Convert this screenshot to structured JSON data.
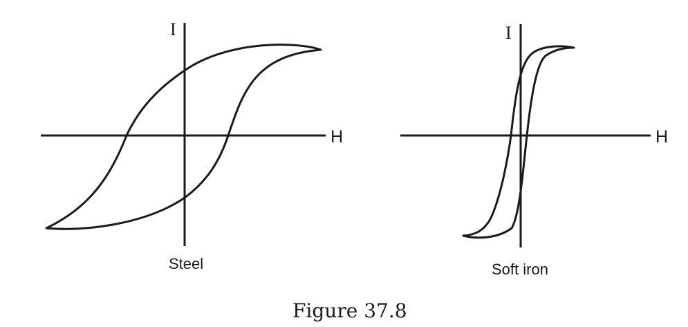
{
  "panels": [
    {
      "id": "steel",
      "y_axis_label": "I",
      "x_axis_label": "H",
      "label": "Steel"
    },
    {
      "id": "soft-iron",
      "y_axis_label": "I",
      "x_axis_label": "H",
      "label": "Soft iron"
    }
  ],
  "caption": "Figure 37.8",
  "colors": {
    "ink": "#1a1a1a",
    "background": "#ffffff"
  }
}
